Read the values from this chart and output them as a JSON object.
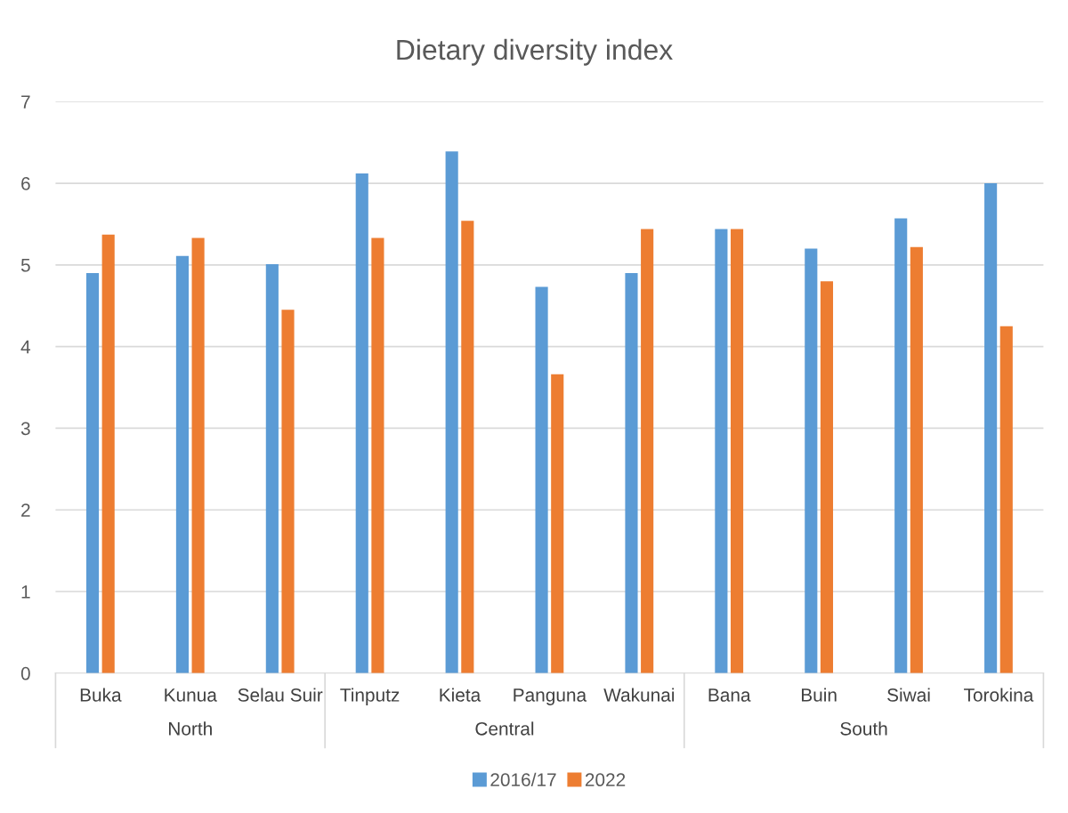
{
  "chart_data": {
    "type": "bar",
    "title": "Dietary diversity index",
    "categories": [
      "Buka",
      "Kunua",
      "Selau Suir",
      "Tinputz",
      "Kieta",
      "Panguna",
      "Wakunai",
      "Bana",
      "Buin",
      "Siwai",
      "Torokina"
    ],
    "series": [
      {
        "name": "2016/17",
        "color": "#5b9bd5",
        "values": [
          4.9,
          5.11,
          5.01,
          6.12,
          6.39,
          4.73,
          4.9,
          5.44,
          5.2,
          5.57,
          6.0
        ]
      },
      {
        "name": "2022",
        "color": "#ed7d31",
        "values": [
          5.37,
          5.33,
          4.45,
          5.33,
          5.54,
          3.66,
          5.44,
          5.44,
          4.8,
          5.22,
          4.25
        ]
      }
    ],
    "annotations": [
      "North",
      "Central",
      "South"
    ],
    "ylim": [
      0,
      7
    ],
    "yticks": [
      0,
      1,
      2,
      3,
      4,
      5,
      6,
      7
    ],
    "grid": "y",
    "legend": "bottom"
  }
}
